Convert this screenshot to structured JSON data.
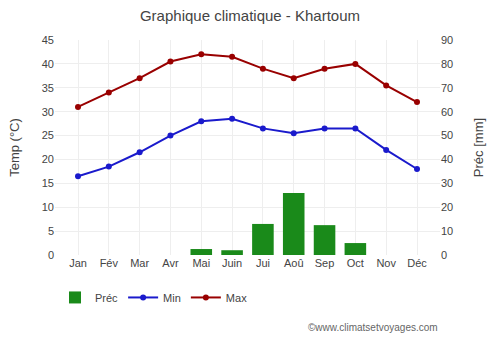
{
  "chart_data": {
    "type": "combo",
    "title": "Graphique climatique - Khartoum",
    "categories": [
      "Jan",
      "Fév",
      "Mar",
      "Avr",
      "Mai",
      "Juin",
      "Jui",
      "Aoû",
      "Sep",
      "Oct",
      "Nov",
      "Déc"
    ],
    "series": [
      {
        "name": "Préc",
        "type": "bar",
        "axis": "y2",
        "color": "#1a8a1a",
        "values": [
          0.0,
          0.0,
          0.0,
          0.0,
          2.5,
          2.0,
          13.0,
          26.0,
          12.5,
          5.0,
          0.0,
          0.0
        ]
      },
      {
        "name": "Min",
        "type": "line",
        "marker": "circle",
        "color": "#1a1acc",
        "values": [
          16.5,
          18.5,
          21.5,
          25.0,
          28.0,
          28.5,
          26.5,
          25.5,
          26.5,
          26.5,
          22.0,
          18.0
        ]
      },
      {
        "name": "Max",
        "type": "line",
        "marker": "circle",
        "color": "#990000",
        "values": [
          31.0,
          34.0,
          37.0,
          40.5,
          42.0,
          41.5,
          39.0,
          37.0,
          39.0,
          40.0,
          35.5,
          32.0
        ]
      }
    ],
    "ylabel": "Temp (°C)",
    "y2label": "Préc [mm]",
    "ylim": [
      0,
      45
    ],
    "yticks": [
      0,
      5,
      10,
      15,
      20,
      25,
      30,
      35,
      40,
      45
    ],
    "y2lim": [
      0,
      90
    ],
    "y2ticks": [
      0,
      10,
      20,
      30,
      40,
      50,
      60,
      70,
      80,
      90
    ],
    "grid": true,
    "legend": "bottom",
    "annotations": [
      "©www.climatsetvoyages.com"
    ]
  }
}
